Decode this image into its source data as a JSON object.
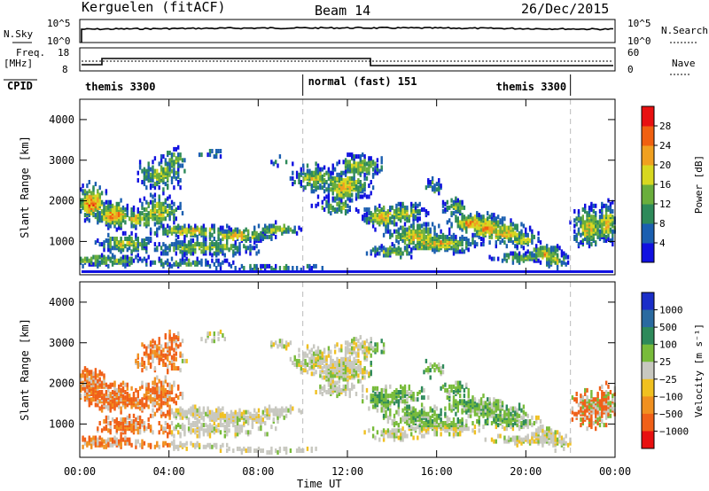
{
  "header": {
    "station": "Kerguelen (fitACF)",
    "beam": "Beam 14",
    "date": "26/Dec/2015"
  },
  "labels": {
    "nsky": "N.Sky",
    "nsearch": "N.Search",
    "freq": "Freq.",
    "mhz": "[MHz]",
    "nave": "Nave",
    "cpid": "CPID"
  },
  "ticks": {
    "n_left_top": "10^5",
    "n_left_bottom": "10^0",
    "n_right_top": "10^5",
    "n_right_bottom": "10^0",
    "freq_top": "18",
    "freq_bottom": "8",
    "nave_top": "60",
    "nave_bottom": "0"
  },
  "cpid_segments": [
    {
      "label": "themis 3300",
      "start_hr": 0,
      "end_hr": 10
    },
    {
      "label": "normal (fast) 151",
      "start_hr": 10,
      "end_hr": 22
    },
    {
      "label": "themis 3300",
      "start_hr": 22,
      "end_hr": 24
    }
  ],
  "chart_data": [
    {
      "type": "heatmap",
      "name": "power",
      "ylabel": "Slant Range [km]",
      "xlabel": "Time UT",
      "x_ticks": [
        "00:00",
        "04:00",
        "08:00",
        "12:00",
        "16:00",
        "20:00",
        "00:00"
      ],
      "y_ticks": [
        1000,
        2000,
        3000,
        4000
      ],
      "ylim": [
        180,
        4500
      ],
      "xlim_hours": [
        0,
        24
      ],
      "colorbar": {
        "label": "Power [dB]",
        "ticks": [
          "4",
          "8",
          "12",
          "16",
          "20",
          "24",
          "28"
        ],
        "colors": [
          "#1010e0",
          "#1b5fb0",
          "#2e8a5a",
          "#6aae3c",
          "#d8d820",
          "#f0a020",
          "#f06010",
          "#e81010"
        ]
      }
    },
    {
      "type": "heatmap",
      "name": "velocity",
      "ylabel": "Slant Range [km]",
      "xlabel": "Time UT",
      "x_ticks": [
        "00:00",
        "04:00",
        "08:00",
        "12:00",
        "16:00",
        "20:00",
        "00:00"
      ],
      "y_ticks": [
        1000,
        2000,
        3000,
        4000
      ],
      "ylim": [
        180,
        4500
      ],
      "xlim_hours": [
        0,
        24
      ],
      "colorbar": {
        "label": "Velocity [m s⁻¹]",
        "ticks": [
          "1000",
          "500",
          "100",
          "25",
          "−25",
          "−100",
          "−500",
          "−1000"
        ],
        "colors": [
          "#1a2ec8",
          "#2a6aa0",
          "#2e8a5a",
          "#78bb3a",
          "#c8c8c0",
          "#f0c020",
          "#f09020",
          "#f06018",
          "#e81010"
        ]
      }
    }
  ]
}
